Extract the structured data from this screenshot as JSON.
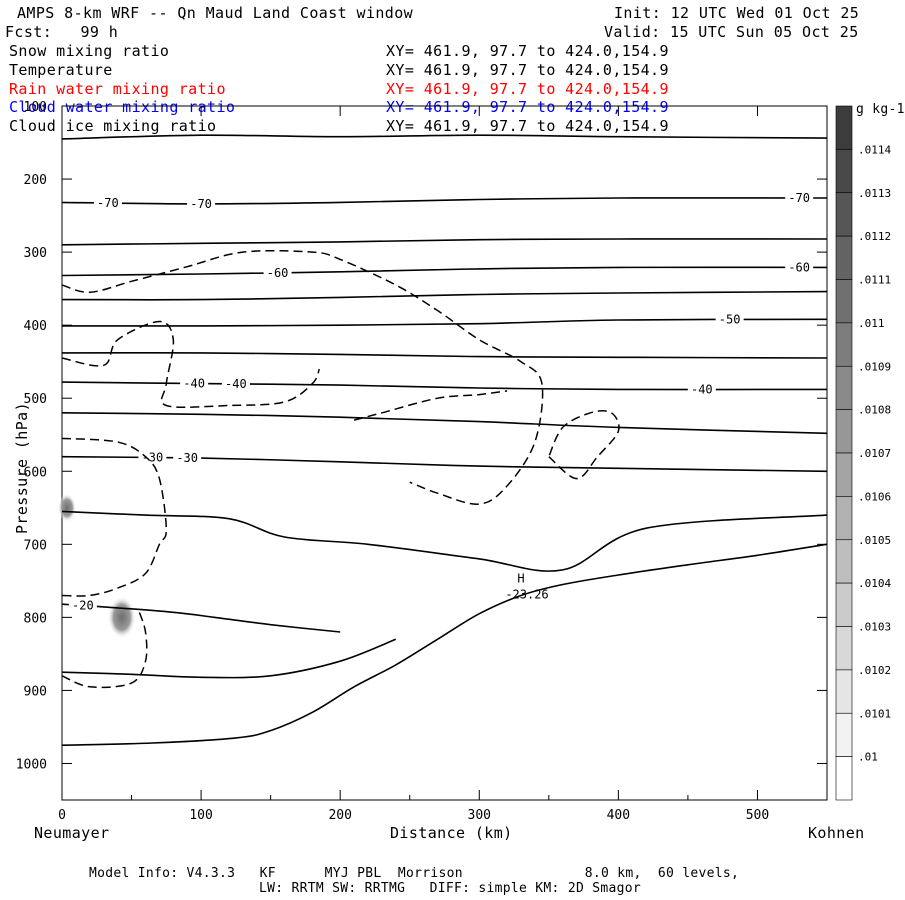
{
  "header": {
    "title": "AMPS 8-km WRF -- Qn Maud Land Coast window",
    "init": "Init: 12 UTC Wed 01 Oct 25",
    "fcst": "Fcst:   99 h",
    "valid": "Valid: 15 UTC Sun 05 Oct 25"
  },
  "legend": [
    {
      "label": "Snow mixing ratio",
      "xy": "XY= 461.9, 97.7 to 424.0,154.9",
      "color": "#000000"
    },
    {
      "label": "Temperature",
      "xy": "XY= 461.9, 97.7 to 424.0,154.9",
      "color": "#000000"
    },
    {
      "label": "Rain water mixing ratio",
      "xy": "XY= 461.9, 97.7 to 424.0,154.9",
      "color": "#ff0000"
    },
    {
      "label": "Cloud water mixing ratio",
      "xy": "XY= 461.9, 97.7 to 424.0,154.9",
      "color": "#0000ff"
    },
    {
      "label": "Cloud ice mixing ratio",
      "xy": "XY= 461.9, 97.7 to 424.0,154.9",
      "color": "#000000"
    }
  ],
  "footer": {
    "model_info": "Model Info: V4.3.3   KF      MYJ PBL  Morrison               8.0 km,  60 levels,",
    "model_info2": "LW: RRTM SW: RRTMG   DIFF: simple KM: 2D Smagor"
  },
  "chart_data": {
    "type": "cross-section",
    "title": "AMPS 8-km WRF -- Qn Maud Land Coast window",
    "xlabel": "Distance (km)",
    "ylabel": "Pressure (hPa)",
    "xlim": [
      0,
      550
    ],
    "ylim": [
      1050,
      100
    ],
    "x_ticks": [
      0,
      100,
      200,
      300,
      400,
      500
    ],
    "y_ticks": [
      100,
      200,
      300,
      400,
      500,
      600,
      700,
      800,
      900,
      1000
    ],
    "x_start_label": "Neumayer",
    "x_end_label": "Kohnen",
    "colorbar": {
      "unit": "g kg-1",
      "labels": [
        ".0114",
        ".0113",
        ".0112",
        ".0111",
        ".011",
        ".0109",
        ".0108",
        ".0107",
        ".0106",
        ".0105",
        ".0104",
        ".0103",
        ".0102",
        ".0101",
        ".01"
      ]
    },
    "terrain": [
      [
        0,
        975
      ],
      [
        65,
        972
      ],
      [
        125,
        965
      ],
      [
        150,
        955
      ],
      [
        180,
        930
      ],
      [
        210,
        895
      ],
      [
        240,
        865
      ],
      [
        270,
        830
      ],
      [
        300,
        795
      ],
      [
        330,
        770
      ],
      [
        360,
        755
      ],
      [
        400,
        742
      ],
      [
        450,
        728
      ],
      [
        500,
        715
      ],
      [
        550,
        700
      ]
    ],
    "isotherms": [
      {
        "level": -70,
        "label": "-70",
        "points": [
          [
            0,
            232
          ],
          [
            100,
            234
          ],
          [
            200,
            232
          ],
          [
            300,
            228
          ],
          [
            400,
            226
          ],
          [
            550,
            226
          ]
        ],
        "label_x": [
          33,
          100,
          530
        ]
      },
      {
        "level": -60,
        "label": "-60",
        "points": [
          [
            0,
            332
          ],
          [
            100,
            330
          ],
          [
            200,
            327
          ],
          [
            300,
            323
          ],
          [
            400,
            321
          ],
          [
            550,
            321
          ]
        ],
        "label_x": [
          155,
          530
        ]
      },
      {
        "level": -50,
        "label": "-50",
        "points": [
          [
            0,
            401
          ],
          [
            100,
            401
          ],
          [
            200,
            400
          ],
          [
            300,
            398
          ],
          [
            400,
            393
          ],
          [
            550,
            392
          ]
        ],
        "label_x": [
          480
        ]
      },
      {
        "level": -40,
        "label": "-40",
        "points": [
          [
            0,
            478
          ],
          [
            100,
            480
          ],
          [
            200,
            482
          ],
          [
            300,
            486
          ],
          [
            400,
            488
          ],
          [
            550,
            488
          ]
        ],
        "label_x": [
          95,
          125,
          460
        ]
      },
      {
        "level": -30,
        "label": "-30",
        "points": [
          [
            0,
            580
          ],
          [
            100,
            582
          ],
          [
            200,
            587
          ],
          [
            300,
            593
          ],
          [
            400,
            596
          ],
          [
            550,
            600
          ]
        ],
        "label_x": [
          65,
          90
        ]
      },
      {
        "level": -20,
        "label": "-20",
        "points": [
          [
            0,
            782
          ],
          [
            40,
            787
          ],
          [
            80,
            793
          ],
          [
            110,
            800
          ],
          [
            150,
            810
          ],
          [
            200,
            820
          ]
        ],
        "label_x": [
          15
        ]
      }
    ],
    "low_center": {
      "label": "H",
      "value": "-23.26",
      "x": 330,
      "p": 755
    }
  }
}
